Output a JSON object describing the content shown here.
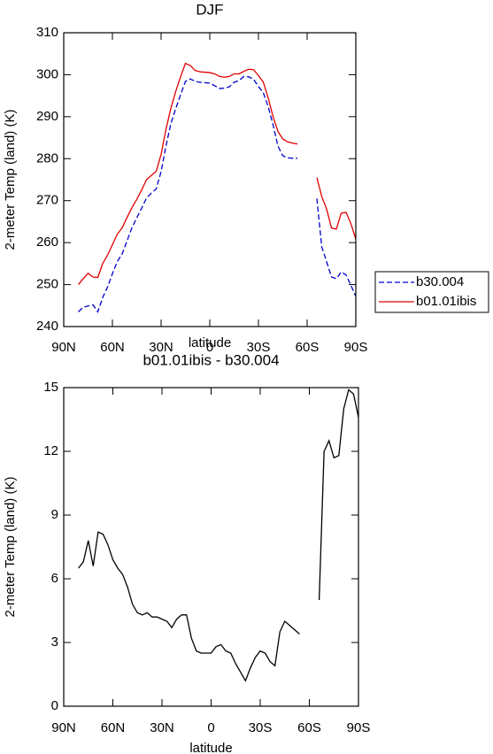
{
  "chart_data": [
    {
      "type": "line",
      "title": "DJF",
      "xlabel": "latitude",
      "ylabel": "2-meter Temp (land) (K)",
      "x": [
        81,
        78,
        75,
        72,
        69,
        66,
        63,
        60,
        57,
        54,
        51,
        48,
        45,
        42,
        39,
        36,
        33,
        30,
        27,
        24,
        21,
        18,
        15,
        12,
        9,
        6,
        3,
        0,
        -3,
        -6,
        -9,
        -12,
        -15,
        -18,
        -21,
        -24,
        -27,
        -30,
        -33,
        -36,
        -39,
        -42,
        -45,
        -48,
        -51,
        -54,
        -57,
        -60,
        -63,
        -66,
        -69,
        -72,
        -75,
        -78,
        -81,
        -84,
        -87,
        -90
      ],
      "series": [
        {
          "name": "b30.004",
          "color": "#0000cc",
          "linestyle": "dashed",
          "values": [
            243.5,
            244.6,
            244.9,
            245.2,
            243.5,
            246.9,
            249.4,
            252.6,
            255.5,
            257.3,
            260.4,
            263.5,
            265.9,
            268.2,
            270.6,
            271.8,
            272.8,
            276.9,
            283.0,
            288.3,
            291.9,
            295.2,
            298.4,
            299.0,
            298.4,
            298.2,
            298.1,
            298.0,
            297.4,
            296.7,
            296.8,
            297.1,
            298.2,
            298.6,
            299.6,
            299.5,
            298.9,
            297.2,
            295.7,
            292.4,
            288.1,
            283.0,
            280.7,
            280.2,
            280.1,
            280.1,
            null,
            null,
            null,
            270.5,
            259.0,
            255.5,
            251.8,
            251.4,
            253.0,
            252.3,
            249.8,
            247.2
          ]
        },
        {
          "name": "b01.01ibis",
          "color": "#e00000",
          "linestyle": "solid",
          "values": [
            250.0,
            251.4,
            252.7,
            251.8,
            251.7,
            255.0,
            257.0,
            259.5,
            262.0,
            263.5,
            266.0,
            268.3,
            270.3,
            272.5,
            275.0,
            276.0,
            277.0,
            281.0,
            287.0,
            292.0,
            296.0,
            299.5,
            302.7,
            302.2,
            301.0,
            300.7,
            300.6,
            300.5,
            300.2,
            299.6,
            299.4,
            299.6,
            300.2,
            300.2,
            300.8,
            301.3,
            301.2,
            299.8,
            298.2,
            294.5,
            290.0,
            286.5,
            284.7,
            284.0,
            283.7,
            283.5,
            null,
            null,
            null,
            275.5,
            271.0,
            268.0,
            263.5,
            263.2,
            267.0,
            267.2,
            264.5,
            260.8
          ]
        }
      ],
      "xlim": [
        90,
        -90
      ],
      "xticks": [
        {
          "value": 90,
          "label": "90N"
        },
        {
          "value": 60,
          "label": "60N"
        },
        {
          "value": 30,
          "label": "30N"
        },
        0,
        {
          "value": -30,
          "label": "30S"
        },
        {
          "value": -60,
          "label": "60S"
        },
        {
          "value": -90,
          "label": "90S"
        }
      ],
      "ylim": [
        240,
        310
      ],
      "yticks": [
        240,
        250,
        260,
        270,
        280,
        290,
        300,
        310
      ],
      "legend": "right",
      "grid": false
    },
    {
      "type": "line",
      "title": "b01.01ibis - b30.004",
      "xlabel": "latitude",
      "ylabel": "2-meter Temp (land) (K)",
      "x": [
        81,
        78,
        75,
        72,
        69,
        66,
        63,
        60,
        57,
        54,
        51,
        48,
        45,
        42,
        39,
        36,
        33,
        30,
        27,
        24,
        21,
        18,
        15,
        12,
        9,
        6,
        3,
        0,
        -3,
        -6,
        -9,
        -12,
        -15,
        -18,
        -21,
        -24,
        -27,
        -30,
        -33,
        -36,
        -39,
        -42,
        -45,
        -48,
        -51,
        -54,
        -57,
        -60,
        -63,
        -66,
        -69,
        -72,
        -75,
        -78,
        -81,
        -84,
        -87,
        -90
      ],
      "color": "#000000",
      "values": [
        6.5,
        6.8,
        7.8,
        6.6,
        8.2,
        8.1,
        7.6,
        6.9,
        6.5,
        6.2,
        5.6,
        4.8,
        4.4,
        4.3,
        4.4,
        4.2,
        4.2,
        4.1,
        4.0,
        3.7,
        4.1,
        4.3,
        4.3,
        3.2,
        2.6,
        2.5,
        2.5,
        2.5,
        2.8,
        2.9,
        2.6,
        2.5,
        2.0,
        1.6,
        1.2,
        1.8,
        2.3,
        2.6,
        2.5,
        2.1,
        1.9,
        3.5,
        4.0,
        3.8,
        3.6,
        3.4,
        null,
        null,
        null,
        5.0,
        12.0,
        12.5,
        11.7,
        11.8,
        14.0,
        14.9,
        14.7,
        13.6
      ],
      "xlim": [
        90,
        -90
      ],
      "xticks": [
        {
          "value": 90,
          "label": "90N"
        },
        {
          "value": 60,
          "label": "60N"
        },
        {
          "value": 30,
          "label": "30N"
        },
        0,
        {
          "value": -30,
          "label": "30S"
        },
        {
          "value": -60,
          "label": "60S"
        },
        {
          "value": -90,
          "label": "90S"
        }
      ],
      "ylim": [
        0,
        15
      ],
      "yticks": [
        0,
        3,
        6,
        9,
        12,
        15
      ],
      "grid": false
    }
  ]
}
